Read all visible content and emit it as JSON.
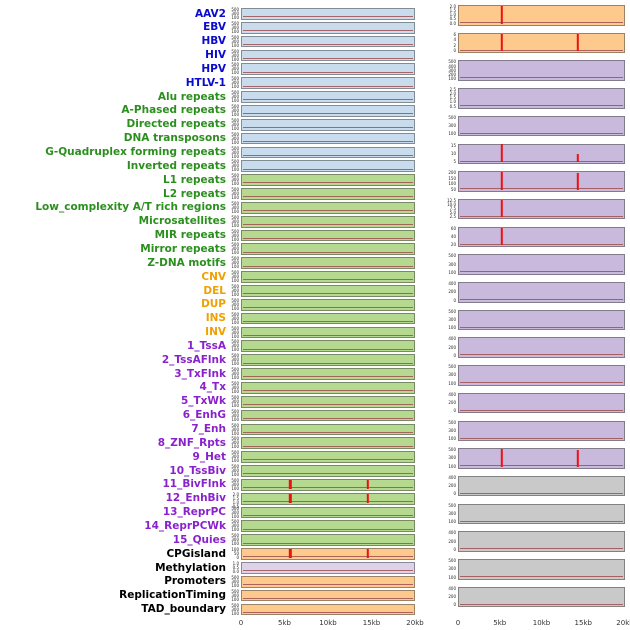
{
  "chart_data": {
    "type": "line",
    "subtype": "genomic-track-small-multiples",
    "title": "",
    "x_axis": {
      "ticks": [
        "0",
        "5kb",
        "10kb",
        "15kb",
        "20kb"
      ],
      "range_kb": [
        0,
        20
      ]
    },
    "label_groups": {
      "virus": "#0a0ad0",
      "repeat": "#2b8f1e",
      "sv": "#f0a000",
      "chromatin": "#8a22cc",
      "other": "#000000"
    },
    "panel_colors": {
      "blue": "#c9dcee",
      "green": "#b5d98f",
      "orange": "#fdc98c",
      "purple": "#c9badd",
      "gray": "#c9c9c9",
      "lavender": "#dcd3eb"
    },
    "spike_color": "#ee1111",
    "trace_color": "#a05050",
    "default_yticks": [
      "500",
      "300",
      "100"
    ],
    "left_rows": [
      {
        "label": "AAV2",
        "group": "virus",
        "color": "blue",
        "spikes": []
      },
      {
        "label": "EBV",
        "group": "virus",
        "color": "blue",
        "spikes": []
      },
      {
        "label": "HBV",
        "group": "virus",
        "color": "blue",
        "spikes": []
      },
      {
        "label": "HIV",
        "group": "virus",
        "color": "blue",
        "spikes": []
      },
      {
        "label": "HPV",
        "group": "virus",
        "color": "blue",
        "spikes": []
      },
      {
        "label": "HTLV-1",
        "group": "virus",
        "color": "blue",
        "spikes": []
      },
      {
        "label": "Alu repeats",
        "group": "repeat",
        "color": "blue",
        "spikes": []
      },
      {
        "label": "A-Phased repeats",
        "group": "repeat",
        "color": "blue",
        "spikes": []
      },
      {
        "label": "Directed repeats",
        "group": "repeat",
        "color": "blue",
        "spikes": []
      },
      {
        "label": "DNA transposons",
        "group": "repeat",
        "color": "blue",
        "spikes": []
      },
      {
        "label": "G-Quadruplex forming repeats",
        "group": "repeat",
        "color": "blue",
        "spikes": []
      },
      {
        "label": "Inverted repeats",
        "group": "repeat",
        "color": "blue",
        "spikes": []
      },
      {
        "label": "L1 repeats",
        "group": "repeat",
        "color": "green",
        "spikes": []
      },
      {
        "label": "L2 repeats",
        "group": "repeat",
        "color": "green",
        "spikes": []
      },
      {
        "label": "Low_complexity A/T rich regions",
        "group": "repeat",
        "color": "green",
        "spikes": []
      },
      {
        "label": "Microsatellites",
        "group": "repeat",
        "color": "green",
        "spikes": []
      },
      {
        "label": "MIR repeats",
        "group": "repeat",
        "color": "green",
        "spikes": []
      },
      {
        "label": "Mirror repeats",
        "group": "repeat",
        "color": "green",
        "spikes": []
      },
      {
        "label": "Z-DNA motifs",
        "group": "repeat",
        "color": "green",
        "spikes": []
      },
      {
        "label": "CNV",
        "group": "sv",
        "color": "green",
        "spikes": []
      },
      {
        "label": "DEL",
        "group": "sv",
        "color": "green",
        "spikes": []
      },
      {
        "label": "DUP",
        "group": "sv",
        "color": "green",
        "spikes": []
      },
      {
        "label": "INS",
        "group": "sv",
        "color": "green",
        "spikes": []
      },
      {
        "label": "INV",
        "group": "sv",
        "color": "green",
        "spikes": []
      },
      {
        "label": "1_TssA",
        "group": "chromatin",
        "color": "green",
        "spikes": []
      },
      {
        "label": "2_TssAFlnk",
        "group": "chromatin",
        "color": "green",
        "spikes": []
      },
      {
        "label": "3_TxFlnk",
        "group": "chromatin",
        "color": "green",
        "spikes": []
      },
      {
        "label": "4_Tx",
        "group": "chromatin",
        "color": "green",
        "spikes": []
      },
      {
        "label": "5_TxWk",
        "group": "chromatin",
        "color": "green",
        "spikes": []
      },
      {
        "label": "6_EnhG",
        "group": "chromatin",
        "color": "green",
        "spikes": []
      },
      {
        "label": "7_Enh",
        "group": "chromatin",
        "color": "green",
        "spikes": []
      },
      {
        "label": "8_ZNF_Rpts",
        "group": "chromatin",
        "color": "green",
        "spikes": []
      },
      {
        "label": "9_Het",
        "group": "chromatin",
        "color": "green",
        "spikes": []
      },
      {
        "label": "10_TssBiv",
        "group": "chromatin",
        "color": "green",
        "spikes": []
      },
      {
        "label": "11_BivFlnk",
        "group": "chromatin",
        "color": "green",
        "spikes": [
          {
            "x": 0.28,
            "h": 0.9
          },
          {
            "x": 0.73,
            "h": 0.9
          }
        ]
      },
      {
        "label": "12_EnhBiv",
        "group": "chromatin",
        "color": "green",
        "yticks": [
          "2.0",
          "1.5",
          "1.0",
          "0.5"
        ],
        "spikes": [
          {
            "x": 0.28,
            "h": 0.92
          },
          {
            "x": 0.73,
            "h": 0.92
          }
        ]
      },
      {
        "label": "13_ReprPC",
        "group": "chromatin",
        "color": "green",
        "spikes": []
      },
      {
        "label": "14_ReprPCWk",
        "group": "chromatin",
        "color": "green",
        "spikes": []
      },
      {
        "label": "15_Quies",
        "group": "chromatin",
        "color": "green",
        "spikes": []
      },
      {
        "label": "CPGisland",
        "group": "other",
        "color": "orange",
        "yticks": [
          "100",
          "50",
          "0"
        ],
        "spikes": [
          {
            "x": 0.28,
            "h": 0.92
          },
          {
            "x": 0.73,
            "h": 0.92
          }
        ]
      },
      {
        "label": "Methylation",
        "group": "other",
        "color": "lavender",
        "yticks": [
          "1.0",
          "0.5",
          "0.0"
        ],
        "spikes": []
      },
      {
        "label": "Promoters",
        "group": "other",
        "color": "orange",
        "spikes": []
      },
      {
        "label": "ReplicationTiming",
        "group": "other",
        "color": "orange",
        "spikes": []
      },
      {
        "label": "TAD_boundary",
        "group": "other",
        "color": "orange",
        "spikes": []
      }
    ],
    "right_panels": [
      {
        "color": "orange",
        "yticks": [
          "2.0",
          "1.5",
          "1.0",
          "0.5",
          "0.0"
        ],
        "spikes": [
          {
            "x": 0.26,
            "h": 0.95
          }
        ]
      },
      {
        "color": "orange",
        "yticks": [
          "6",
          "4",
          "2",
          "0"
        ],
        "spikes": [
          {
            "x": 0.26,
            "h": 0.95
          },
          {
            "x": 0.72,
            "h": 0.95
          }
        ]
      },
      {
        "color": "purple",
        "yticks": [
          "500",
          "400",
          "300",
          "200",
          "100"
        ],
        "spikes": []
      },
      {
        "color": "purple",
        "yticks": [
          "2.5",
          "2.0",
          "1.5",
          "1.0",
          "0.5"
        ],
        "spikes": []
      },
      {
        "color": "purple",
        "yticks": [
          "500",
          "300",
          "100"
        ],
        "spikes": []
      },
      {
        "color": "purple",
        "yticks": [
          "15",
          "10",
          "5"
        ],
        "spikes": [
          {
            "x": 0.26,
            "h": 0.95
          },
          {
            "x": 0.72,
            "h": 0.45
          }
        ]
      },
      {
        "color": "purple",
        "yticks": [
          "200",
          "150",
          "100",
          "50"
        ],
        "spikes": [
          {
            "x": 0.26,
            "h": 0.95
          },
          {
            "x": 0.72,
            "h": 0.9
          }
        ]
      },
      {
        "color": "purple",
        "yticks": [
          "12.5",
          "10.0",
          "7.5",
          "5.0",
          "2.5"
        ],
        "spikes": [
          {
            "x": 0.26,
            "h": 0.95
          }
        ]
      },
      {
        "color": "purple",
        "yticks": [
          "60",
          "40",
          "20"
        ],
        "spikes": [
          {
            "x": 0.26,
            "h": 0.9
          }
        ]
      },
      {
        "color": "purple",
        "yticks": [
          "500",
          "300",
          "100"
        ],
        "spikes": []
      },
      {
        "color": "purple",
        "yticks": [
          "400",
          "200",
          "0"
        ],
        "spikes": []
      },
      {
        "color": "purple",
        "yticks": [
          "500",
          "300",
          "100"
        ],
        "spikes": []
      },
      {
        "color": "purple",
        "yticks": [
          "400",
          "200",
          "0"
        ],
        "spikes": []
      },
      {
        "color": "purple",
        "yticks": [
          "500",
          "300",
          "100"
        ],
        "spikes": []
      },
      {
        "color": "purple",
        "yticks": [
          "400",
          "200",
          "0"
        ],
        "spikes": []
      },
      {
        "color": "purple",
        "yticks": [
          "500",
          "300",
          "100"
        ],
        "spikes": []
      },
      {
        "color": "purple",
        "yticks": [
          "500",
          "300",
          "100"
        ],
        "spikes": [
          {
            "x": 0.26,
            "h": 0.95
          },
          {
            "x": 0.72,
            "h": 0.9
          }
        ]
      },
      {
        "color": "gray",
        "yticks": [
          "400",
          "200",
          "0"
        ],
        "spikes": []
      },
      {
        "color": "gray",
        "yticks": [
          "500",
          "300",
          "100"
        ],
        "spikes": []
      },
      {
        "color": "gray",
        "yticks": [
          "400",
          "200",
          "0"
        ],
        "spikes": []
      },
      {
        "color": "gray",
        "yticks": [
          "500",
          "300",
          "100"
        ],
        "spikes": []
      },
      {
        "color": "gray",
        "yticks": [
          "400",
          "200",
          "0"
        ],
        "spikes": []
      }
    ]
  }
}
